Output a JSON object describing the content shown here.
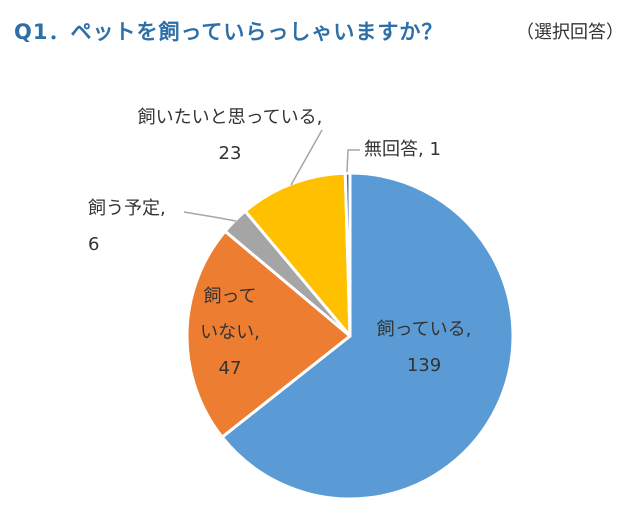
{
  "header": {
    "title": "Q1．ペットを飼っていらっしゃいますか？",
    "subtitle": "（選択回答）"
  },
  "chart_data": {
    "type": "pie",
    "title": "Q1．ペットを飼っていらっしゃいますか？",
    "subtitle": "（選択回答）",
    "start_angle_deg": 90,
    "direction": "clockwise",
    "slices": [
      {
        "label": "飼っている",
        "value": 139,
        "color": "#5B9BD5",
        "label_lines": [
          "飼っている,",
          "139"
        ]
      },
      {
        "label": "飼っていない",
        "value": 47,
        "color": "#ED7D31",
        "label_lines": [
          "飼って",
          "いない,",
          "47"
        ]
      },
      {
        "label": "飼う予定",
        "value": 6,
        "color": "#A5A5A5",
        "label_lines": [
          "飼う予定,",
          "6"
        ]
      },
      {
        "label": "飼いたいと思っている",
        "value": 23,
        "color": "#FFC000",
        "label_lines": [
          "飼いたいと思っている,",
          "23"
        ]
      },
      {
        "label": "無回答",
        "value": 1,
        "color": "#4472C4",
        "label_lines": [
          "無回答, 1"
        ]
      }
    ]
  }
}
